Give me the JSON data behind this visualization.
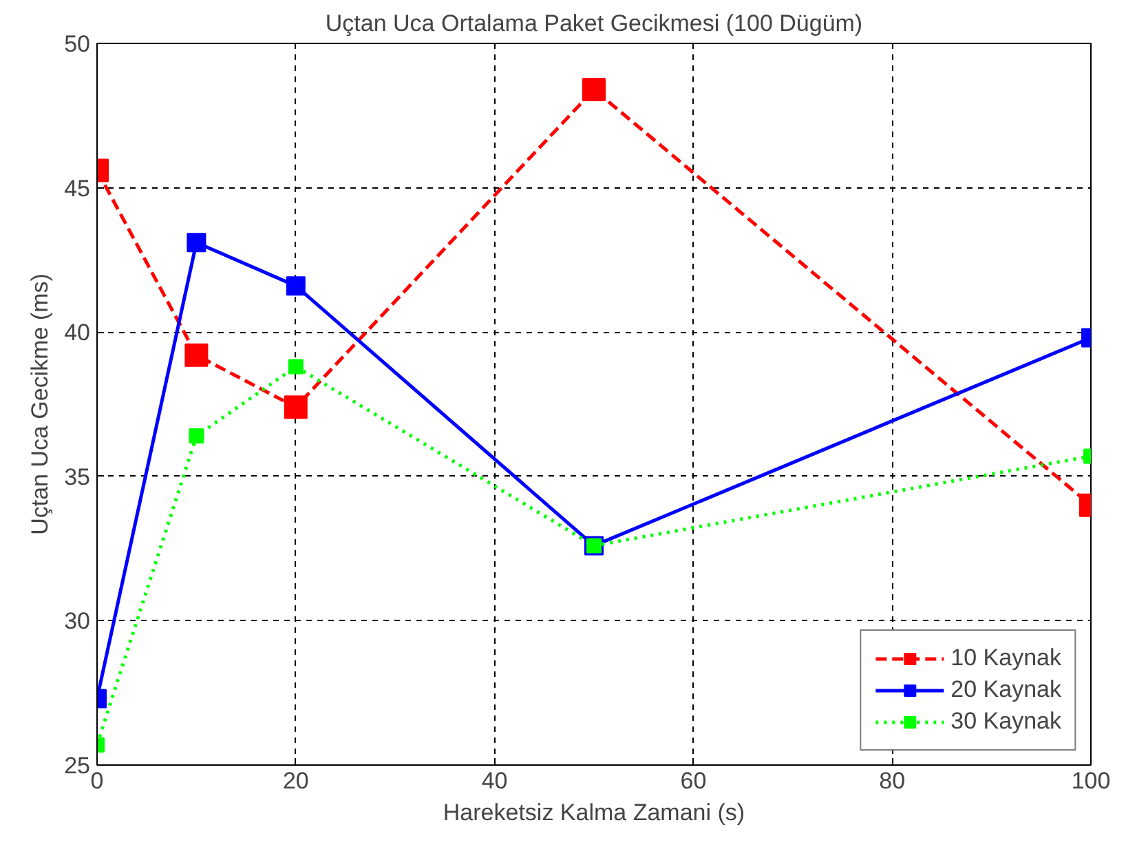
{
  "chart_data": {
    "type": "line",
    "title": "Uçtan Uca Ortalama Paket Gecikmesi (100 Dügüm)",
    "xlabel": "Hareketsiz Kalma Zamani (s)",
    "ylabel": "Uçtan Uca Gecikme (ms)",
    "x": [
      0,
      10,
      20,
      50,
      100
    ],
    "series": [
      {
        "name": "10 Kaynak",
        "color": "#ff0000",
        "line_style": "dashed",
        "values": [
          45.6,
          39.2,
          37.4,
          48.4,
          34.0
        ]
      },
      {
        "name": "20 Kaynak",
        "color": "#0000ff",
        "line_style": "solid",
        "values": [
          27.3,
          43.1,
          41.6,
          32.6,
          39.8
        ]
      },
      {
        "name": "30 Kaynak",
        "color": "#00ff00",
        "line_style": "dotted",
        "values": [
          25.7,
          36.4,
          38.8,
          32.6,
          35.7
        ]
      }
    ],
    "xlim": [
      0,
      100
    ],
    "xticks": [
      0,
      20,
      40,
      60,
      80,
      100
    ],
    "ylim": [
      25,
      50
    ],
    "yticks": [
      25,
      30,
      35,
      40,
      45,
      50
    ],
    "grid": true,
    "legend": "bottom right",
    "marker": "square"
  }
}
